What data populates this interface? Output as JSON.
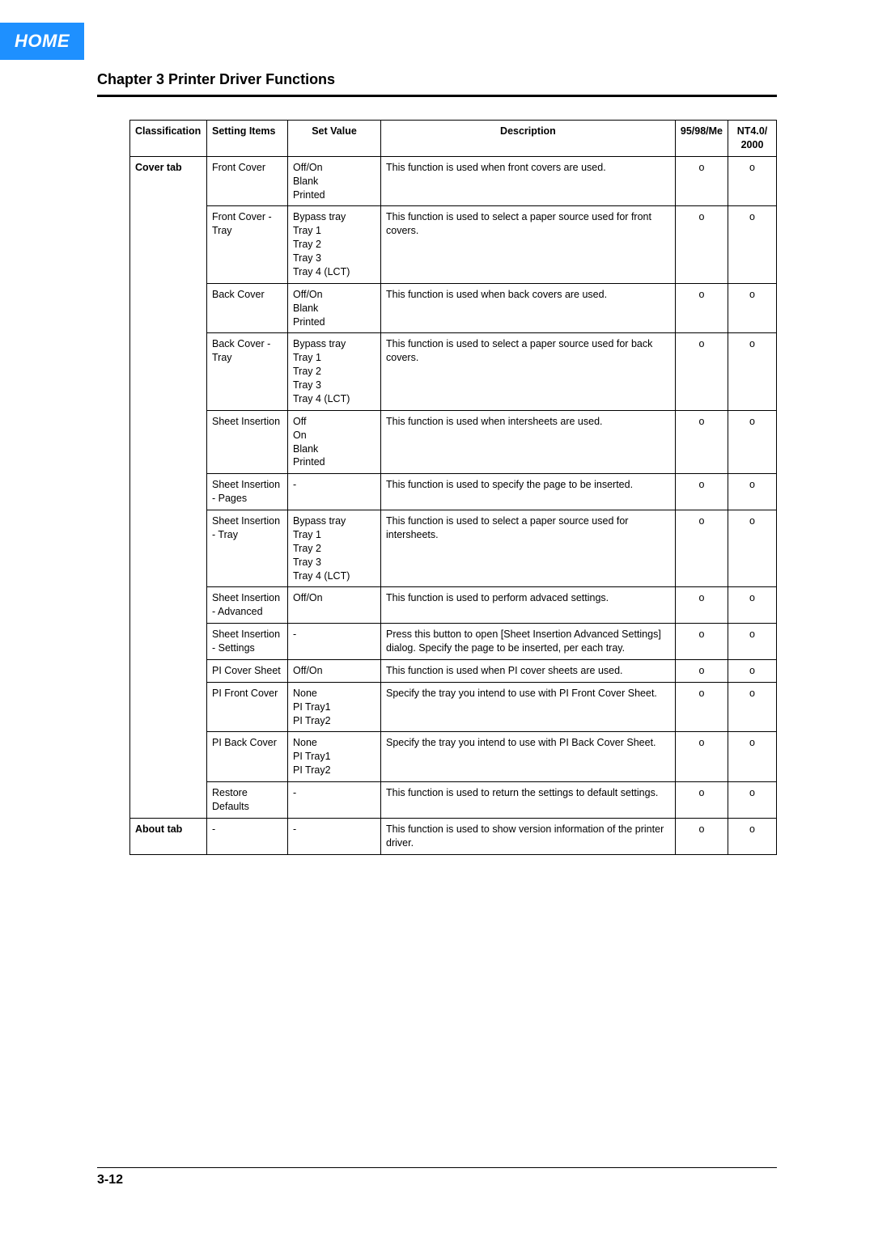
{
  "home_label": "HOME",
  "chapter_title": "Chapter 3 Printer Driver Functions",
  "page_number": "3-12",
  "table": {
    "headers": {
      "classification": "Classification",
      "setting_items": "Setting Items",
      "set_value": "Set Value",
      "description": "Description",
      "os_a": "95/98/Me",
      "os_b_line1": "NT4.0/",
      "os_b_line2": "2000"
    },
    "groups": [
      {
        "classification": "Cover tab",
        "rows": [
          {
            "item": "Front Cover",
            "values": [
              "Off/On",
              "Blank",
              "Printed"
            ],
            "desc": "This function is used when front covers are used.",
            "a": "o",
            "b": "o"
          },
          {
            "item": "Front Cover - Tray",
            "values": [
              "Bypass tray",
              "Tray 1",
              "Tray 2",
              "Tray 3",
              "Tray 4 (LCT)"
            ],
            "desc": "This function is used to select a paper source used for front covers.",
            "a": "o",
            "b": "o"
          },
          {
            "item": "Back Cover",
            "values": [
              "Off/On",
              "Blank",
              "Printed"
            ],
            "desc": "This function is used when back covers are used.",
            "a": "o",
            "b": "o"
          },
          {
            "item": "Back Cover - Tray",
            "values": [
              "Bypass tray",
              "Tray 1",
              "Tray 2",
              "Tray 3",
              "Tray 4 (LCT)"
            ],
            "desc": "This function is used to select a paper source used for back covers.",
            "a": "o",
            "b": "o"
          },
          {
            "item": "Sheet Insertion",
            "values": [
              "Off",
              "On",
              "Blank",
              "Printed"
            ],
            "desc": "This function is used when intersheets are used.",
            "a": "o",
            "b": "o"
          },
          {
            "item": "Sheet Insertion - Pages",
            "values": [
              "-"
            ],
            "desc": "This function is used to specify the page to be inserted.",
            "a": "o",
            "b": "o"
          },
          {
            "item": "Sheet Insertion - Tray",
            "values": [
              "Bypass tray",
              "Tray 1",
              "Tray 2",
              "Tray 3",
              "Tray 4 (LCT)"
            ],
            "desc": "This function is used to select a paper source used for intersheets.",
            "a": "o",
            "b": "o"
          },
          {
            "item": "Sheet Insertion - Advanced",
            "values": [
              "Off/On"
            ],
            "desc": "This function is used to perform advaced settings.",
            "a": "o",
            "b": "o"
          },
          {
            "item": "Sheet Insertion - Settings",
            "values": [
              "-"
            ],
            "desc": "Press this button to open [Sheet Insertion Advanced Settings] dialog. Specify the page to be inserted, per each tray.",
            "a": "o",
            "b": "o"
          },
          {
            "item": "PI Cover Sheet",
            "values": [
              "Off/On"
            ],
            "desc": "This function is used when PI cover sheets are used.",
            "a": "o",
            "b": "o"
          },
          {
            "item": "PI Front Cover",
            "values": [
              "None",
              "PI Tray1",
              "PI Tray2"
            ],
            "desc": "Specify the tray you intend to use with PI Front Cover Sheet.",
            "a": "o",
            "b": "o"
          },
          {
            "item": "PI Back Cover",
            "values": [
              "None",
              "PI Tray1",
              "PI Tray2"
            ],
            "desc": "Specify the tray you intend to use with PI Back Cover Sheet.",
            "a": "o",
            "b": "o"
          },
          {
            "item": "Restore Defaults",
            "values": [
              "-"
            ],
            "desc": "This function is used to return the settings to default settings.",
            "a": "o",
            "b": "o"
          }
        ]
      },
      {
        "classification": "About tab",
        "rows": [
          {
            "item": "-",
            "values": [
              "-"
            ],
            "desc": "This function is used to show version information of the printer driver.",
            "a": "o",
            "b": "o"
          }
        ]
      }
    ]
  }
}
